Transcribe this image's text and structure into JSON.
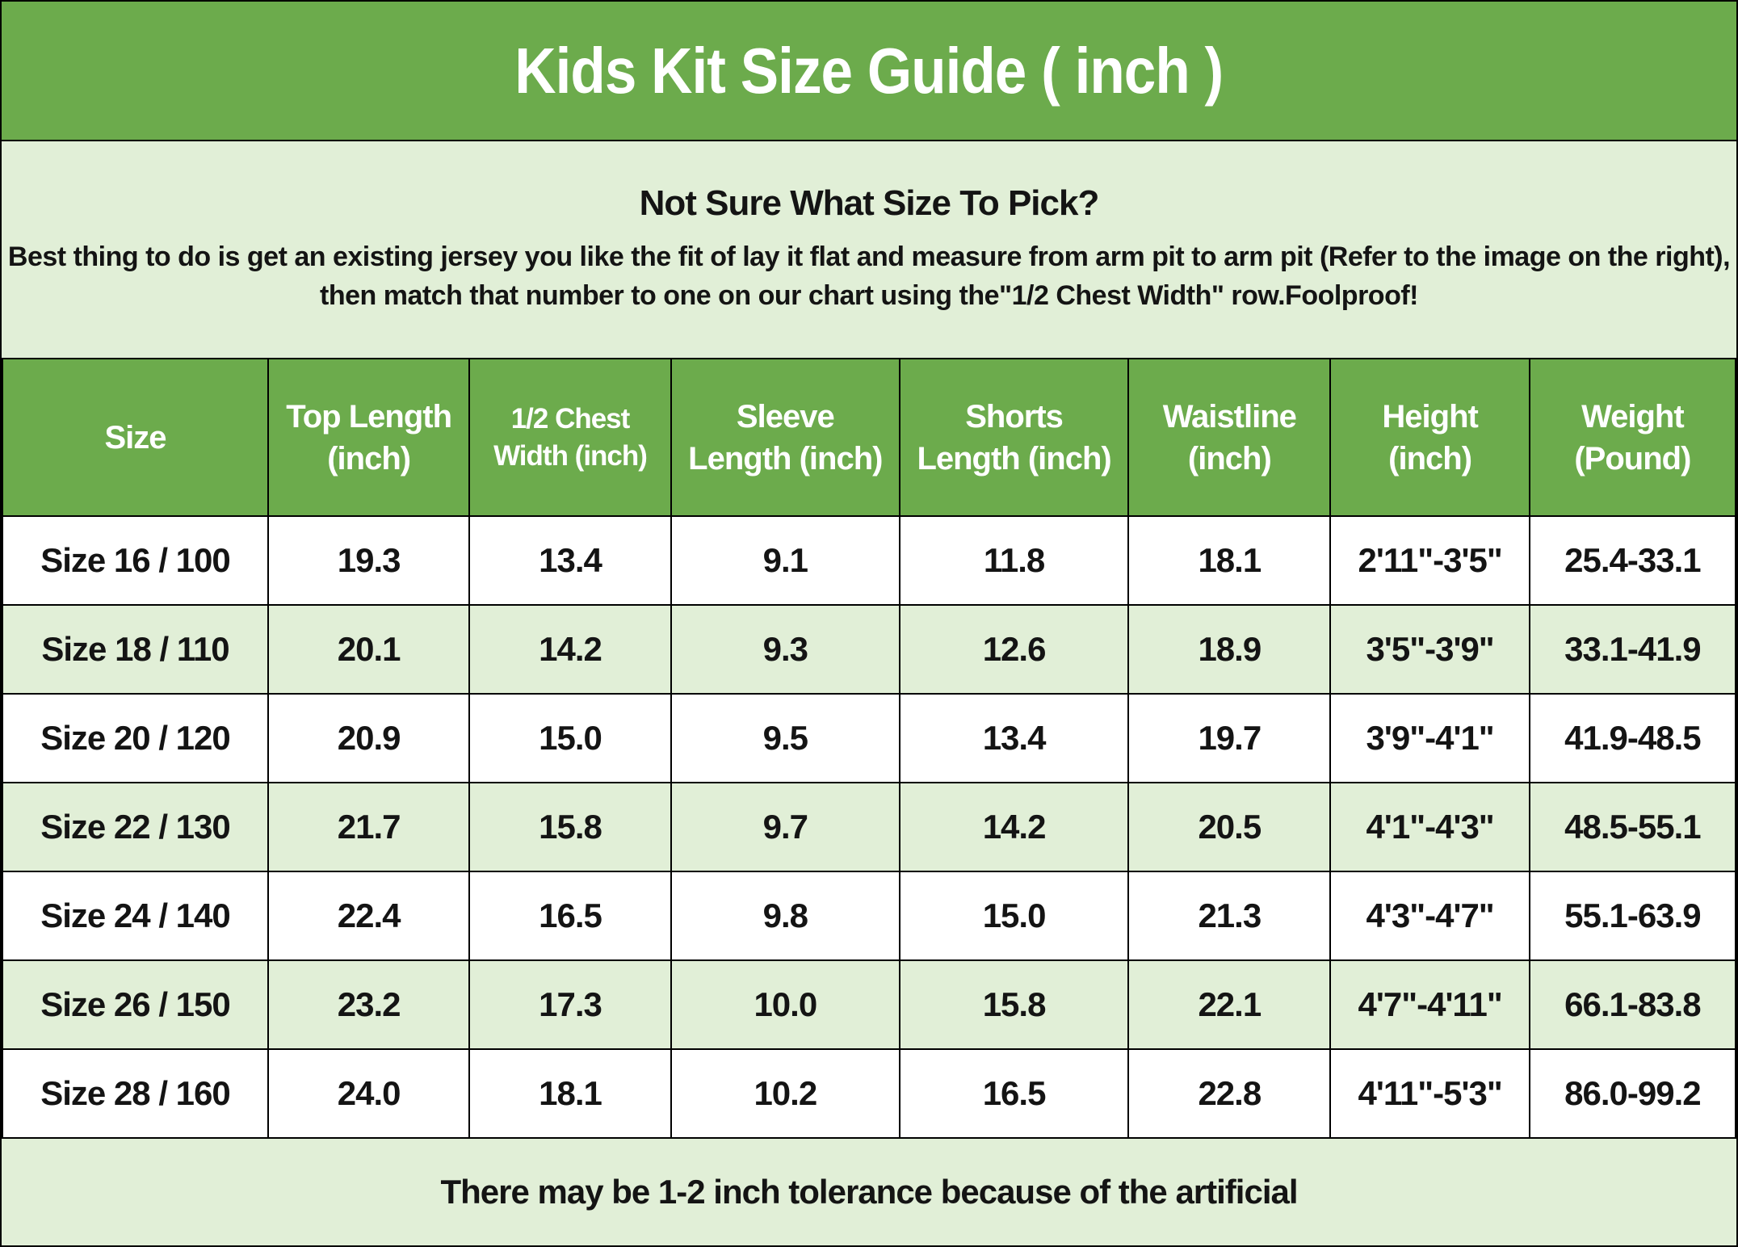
{
  "banner": {
    "title": "Kids Kit Size Guide ( inch )"
  },
  "info": {
    "heading": "Not Sure What Size To Pick?",
    "body": "Best thing to do is get an existing jersey you like the fit of lay it flat and measure from arm pit to arm pit (Refer to the image on the right), then match that number to one on our chart using the\"1/2 Chest Width\" row.Foolproof!"
  },
  "chart_data": {
    "type": "table",
    "title": "Kids Kit Size Guide ( inch )",
    "columns": [
      "Size",
      "Top Length (inch)",
      "1/2 Chest Width (inch)",
      "Sleeve Length (inch)",
      "Shorts Length (inch)",
      "Waistline (inch)",
      "Height (inch)",
      "Weight (Pound)"
    ],
    "rows": [
      [
        "Size 16 / 100",
        "19.3",
        "13.4",
        "9.1",
        "11.8",
        "18.1",
        "2'11\"-3'5\"",
        "25.4-33.1"
      ],
      [
        "Size 18 / 110",
        "20.1",
        "14.2",
        "9.3",
        "12.6",
        "18.9",
        "3'5\"-3'9\"",
        "33.1-41.9"
      ],
      [
        "Size 20 / 120",
        "20.9",
        "15.0",
        "9.5",
        "13.4",
        "19.7",
        "3'9\"-4'1\"",
        "41.9-48.5"
      ],
      [
        "Size 22 / 130",
        "21.7",
        "15.8",
        "9.7",
        "14.2",
        "20.5",
        "4'1\"-4'3\"",
        "48.5-55.1"
      ],
      [
        "Size 24 / 140",
        "22.4",
        "16.5",
        "9.8",
        "15.0",
        "21.3",
        "4'3\"-4'7\"",
        "55.1-63.9"
      ],
      [
        "Size 26 / 150",
        "23.2",
        "17.3",
        "10.0",
        "15.8",
        "22.1",
        "4'7\"-4'11\"",
        "66.1-83.8"
      ],
      [
        "Size 28 / 160",
        "24.0",
        "18.1",
        "10.2",
        "16.5",
        "22.8",
        "4'11\"-5'3\"",
        "86.0-99.2"
      ]
    ]
  },
  "footer": {
    "note": "There may be 1-2 inch tolerance because of the artificial"
  },
  "colors": {
    "green": "#6CAB4C",
    "light_green": "#E1EFD7",
    "border": "#000000",
    "header_text": "#FFFFFF",
    "body_text": "#141414"
  }
}
